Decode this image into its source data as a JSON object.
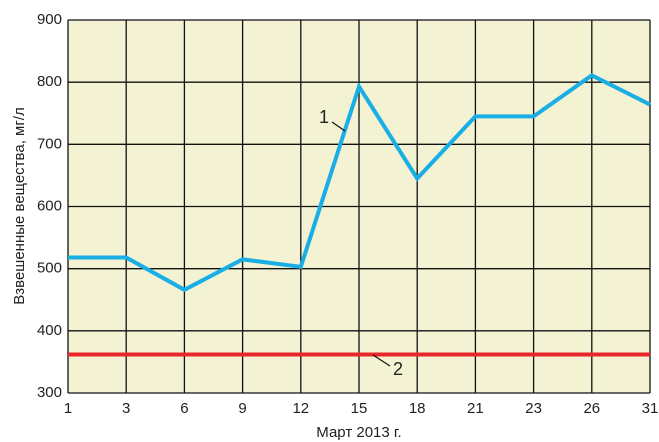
{
  "chart_data": {
    "type": "line",
    "ylabel": "Взвешенные вещества, мг/л",
    "xlabel": "Март 2013 г.",
    "categories": [
      "1",
      "3",
      "6",
      "9",
      "12",
      "15",
      "18",
      "21",
      "23",
      "26",
      "31"
    ],
    "series": [
      {
        "name": "1",
        "color": "#1aaee6",
        "values": [
          518,
          518,
          466,
          515,
          503,
          793,
          645,
          745,
          745,
          811,
          764
        ]
      },
      {
        "name": "2",
        "color": "#e8262b",
        "values": [
          362,
          362,
          362,
          362,
          362,
          362,
          362,
          362,
          362,
          362,
          362
        ]
      }
    ],
    "ylim": [
      300,
      900
    ],
    "yticks": [
      300,
      400,
      500,
      600,
      700,
      800,
      900
    ],
    "grid": true,
    "background": "#f3f2d2"
  }
}
